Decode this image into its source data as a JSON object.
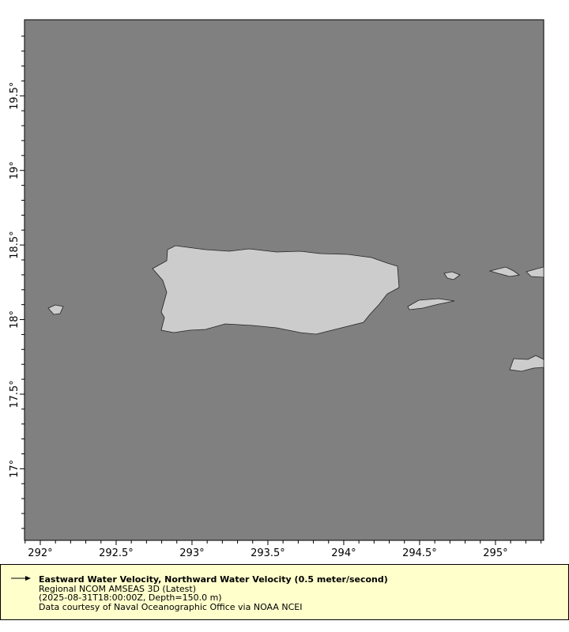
{
  "map": {
    "lon_range": [
      291.896,
      295.318
    ],
    "lat_range": [
      16.52,
      20.01
    ],
    "lon_ticks": [
      "292°",
      "292.5°",
      "293°",
      "293.5°",
      "294°",
      "294.5°",
      "295°"
    ],
    "lat_ticks": [
      "17°",
      "17.5°",
      "18°",
      "18.5°",
      "19°",
      "19.5°"
    ],
    "colors": {
      "ocean": "#808080",
      "land": "#cccccc",
      "legend_bg": "#ffffcc"
    }
  },
  "legend": {
    "icon": "arrow-right-icon",
    "title": "Eastward Water Velocity, Northward Water Velocity (0.5 meter/second)",
    "dataset": "Regional NCOM AMSEAS 3D (Latest)",
    "time_depth": "(2025-08-31T18:00:00Z, Depth=150.0 m)",
    "credit": "Data courtesy of Naval Oceanographic Office via NOAA NCEI"
  }
}
